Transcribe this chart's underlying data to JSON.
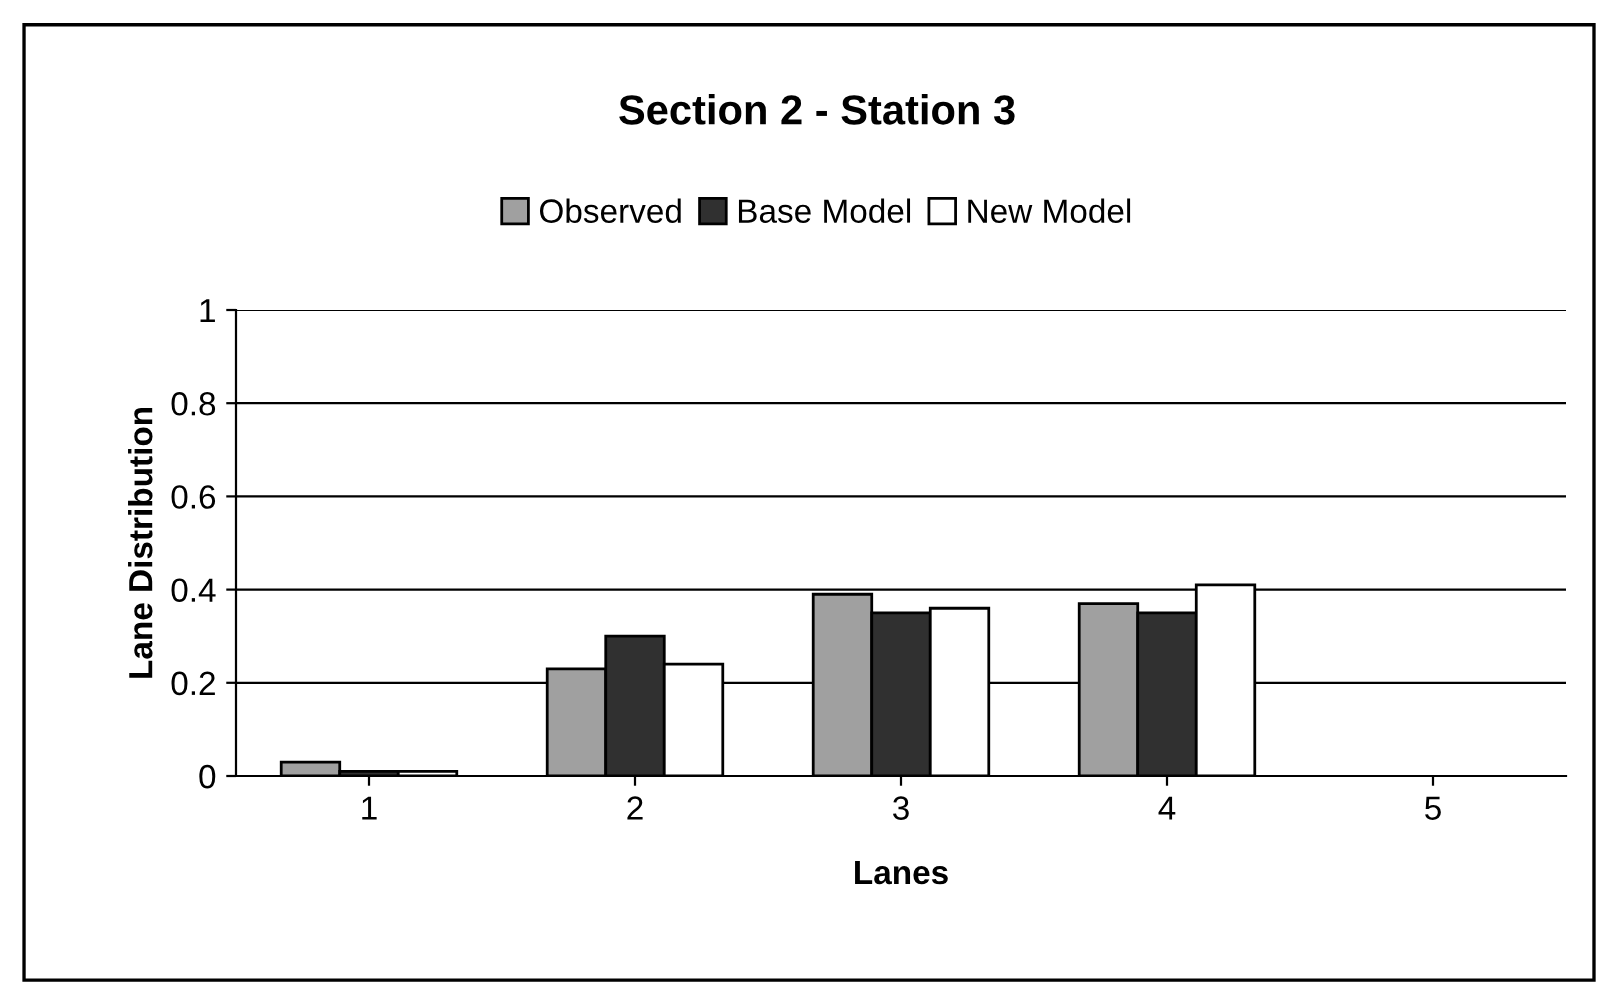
{
  "chart_data": {
    "type": "bar",
    "title": "Section 2 - Station 3",
    "xlabel": "Lanes",
    "ylabel": "Lane Distribution",
    "categories": [
      "1",
      "2",
      "3",
      "4",
      "5"
    ],
    "series": [
      {
        "name": "Observed",
        "color": "#a0a0a0",
        "values": [
          0.03,
          0.23,
          0.39,
          0.37,
          null
        ]
      },
      {
        "name": "Base Model",
        "color": "#303030",
        "values": [
          0.01,
          0.3,
          0.35,
          0.35,
          null
        ]
      },
      {
        "name": "New Model",
        "color": "#ffffff",
        "values": [
          0.01,
          0.24,
          0.36,
          0.41,
          null
        ]
      }
    ],
    "ylim": [
      0,
      1
    ],
    "yticks": [
      0,
      0.2,
      0.4,
      0.6,
      0.8,
      1
    ],
    "grid": "y",
    "legend": "top"
  }
}
